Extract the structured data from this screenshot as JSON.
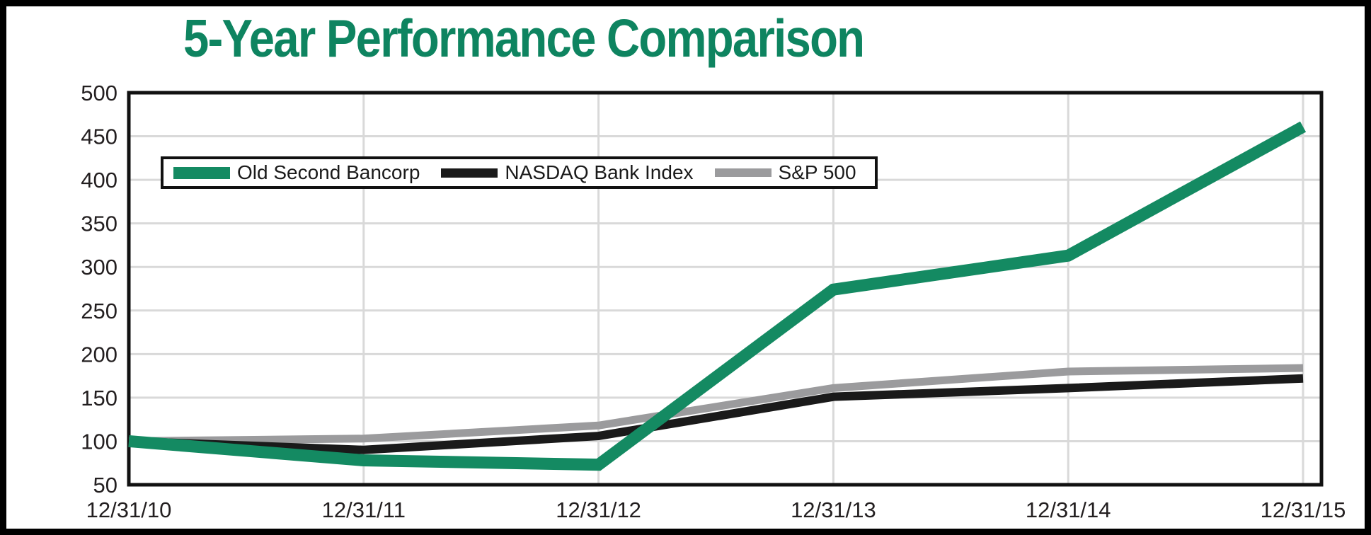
{
  "title": "5-Year Performance Comparison",
  "colors": {
    "title": "#0e8460",
    "grid": "#d9d9d9",
    "axis": "#111111",
    "tick_text": "#231f20",
    "background": "#ffffff",
    "outer_border": "#000000"
  },
  "chart_data": {
    "type": "line",
    "title": "5-Year Performance Comparison",
    "x": [
      "12/31/10",
      "12/31/11",
      "12/31/12",
      "12/31/13",
      "12/31/14",
      "12/31/15"
    ],
    "series": [
      {
        "name": "Old Second Bancorp",
        "color": "#148a62",
        "values": [
          100,
          78,
          73,
          274,
          313,
          461
        ]
      },
      {
        "name": "NASDAQ Bank Index",
        "color": "#1a1a1a",
        "values": [
          100,
          90,
          106,
          151,
          161,
          172
        ]
      },
      {
        "name": "S&P 500",
        "color": "#9b9b9d",
        "values": [
          100,
          103,
          118,
          161,
          180,
          184
        ]
      }
    ],
    "xlabel": "",
    "ylabel": "",
    "ylim": [
      50,
      500
    ],
    "yticks": [
      50,
      100,
      150,
      200,
      250,
      300,
      350,
      400,
      450,
      500
    ],
    "grid": true,
    "legend_position": "top-left-inside"
  }
}
